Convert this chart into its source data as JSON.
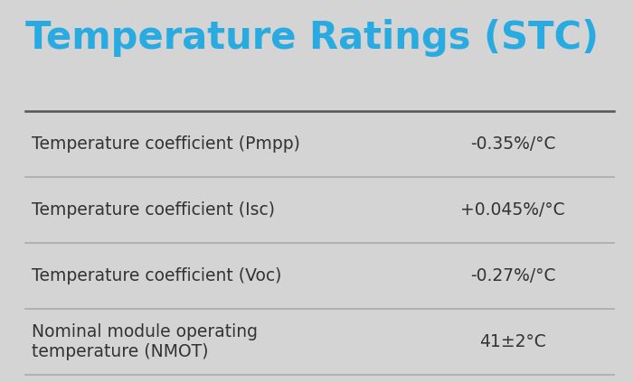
{
  "title": "Temperature Ratings (STC)",
  "title_color": "#29abe2",
  "background_color": "#d4d4d4",
  "rows": [
    {
      "label": "Temperature coefficient (Pmpp)",
      "value": "-0.35%/°C"
    },
    {
      "label": "Temperature coefficient (Isc)",
      "value": "+0.045%/°C"
    },
    {
      "label": "Temperature coefficient (Voc)",
      "value": "-0.27%/°C"
    },
    {
      "label": "Nominal module operating\ntemperature (NMOT)",
      "value": "41±2°C"
    }
  ],
  "label_fontsize": 13.5,
  "value_fontsize": 13.5,
  "title_fontsize": 30,
  "text_color": "#333333",
  "title_line_color": "#555555",
  "line_color": "#aaaaaa",
  "title_line_lw": 1.8,
  "line_lw": 1.2
}
